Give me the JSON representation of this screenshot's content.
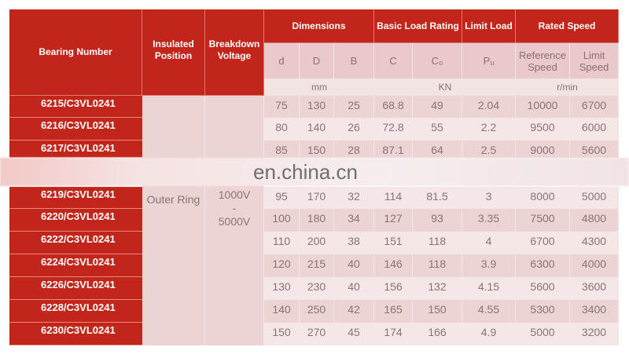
{
  "header": {
    "bearing_number": "Bearing Number",
    "insulated_position": "Insulated Position",
    "breakdown_voltage": "Breakdown Voltage",
    "dimensions": "Dimensions",
    "basic_load_rating": "Basic Load Rating",
    "limit_load": "Limit Load",
    "rated_speed": "Rated Speed",
    "sub": [
      "d",
      "D",
      "B",
      "C",
      "C₀",
      "Pᵤ",
      "Reference Speed",
      "Limit Speed"
    ],
    "units": {
      "dims": "mm",
      "load": "KN",
      "speed": "r/min"
    }
  },
  "insulated_position_value": "Outer Ring",
  "voltage": {
    "min": "1000V",
    "dash": "-",
    "max": "5000V"
  },
  "rows": [
    [
      "6215/C3VL0241",
      "75",
      "130",
      "25",
      "68.8",
      "49",
      "2.04",
      "10000",
      "6700"
    ],
    [
      "6216/C3VL0241",
      "80",
      "140",
      "26",
      "72.8",
      "55",
      "2.2",
      "9500",
      "6000"
    ],
    [
      "6217/C3VL0241",
      "85",
      "150",
      "28",
      "87.1",
      "64",
      "2.5",
      "9000",
      "5600"
    ],
    [
      "6219/C3VL0241",
      "95",
      "170",
      "32",
      "114",
      "81.5",
      "3",
      "8000",
      "5000"
    ],
    [
      "6220/C3VL0241",
      "100",
      "180",
      "34",
      "127",
      "93",
      "3.35",
      "7500",
      "4800"
    ],
    [
      "6222/C3VL0241",
      "110",
      "200",
      "38",
      "151",
      "118",
      "4",
      "6700",
      "4300"
    ],
    [
      "6224/C3VL0241",
      "120",
      "215",
      "40",
      "146",
      "118",
      "3.9",
      "6300",
      "4000"
    ],
    [
      "6226/C3VL0241",
      "130",
      "230",
      "40",
      "156",
      "132",
      "4.15",
      "5600",
      "3600"
    ],
    [
      "6228/C3VL0241",
      "140",
      "250",
      "42",
      "165",
      "150",
      "4.55",
      "5300",
      "3400"
    ],
    [
      "6230/C3VL0241",
      "150",
      "270",
      "45",
      "174",
      "166",
      "4.9",
      "5000",
      "3200"
    ]
  ],
  "watermark": "en.china.cn",
  "colors": {
    "header_red": "#c2261b",
    "row_dark": "#ecd3d4",
    "row_light": "#f5e7e7"
  }
}
